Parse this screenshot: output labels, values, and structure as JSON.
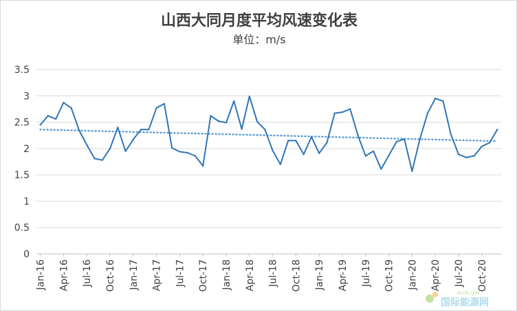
{
  "chart_data": {
    "type": "line",
    "title": "山西大同月度平均风速变化表",
    "subtitle": "单位：m/s",
    "ylim": [
      0,
      3.5
    ],
    "yticks": [
      "0",
      "0.5",
      "1",
      "1.5",
      "2",
      "2.5",
      "3",
      "3.5"
    ],
    "grid": "horizontal",
    "legend": "none",
    "x_tick_labels": [
      "Jan-16",
      "Apr-16",
      "Jul-16",
      "Oct-16",
      "Jan-17",
      "Apr-17",
      "Jul-17",
      "Oct-17",
      "Jan-18",
      "Apr-18",
      "Jul-18",
      "Oct-18",
      "Jan-19",
      "Apr-19",
      "Jul-19",
      "Oct-19",
      "Jan-20",
      "Apr-20",
      "Jul-20",
      "Oct-20"
    ],
    "x_tick_every": 3,
    "series": [
      {
        "style": "solid",
        "color": "#2e75b6",
        "values": [
          2.45,
          2.62,
          2.56,
          2.87,
          2.77,
          2.35,
          2.07,
          1.81,
          1.78,
          2.0,
          2.4,
          1.95,
          2.17,
          2.36,
          2.36,
          2.77,
          2.85,
          2.01,
          1.94,
          1.92,
          1.86,
          1.67,
          2.62,
          2.52,
          2.49,
          2.9,
          2.37,
          2.99,
          2.51,
          2.36,
          1.96,
          1.7,
          2.15,
          2.15,
          1.89,
          2.22,
          1.91,
          2.11,
          2.67,
          2.69,
          2.75,
          2.25,
          1.86,
          1.95,
          1.61,
          1.87,
          2.13,
          2.18,
          1.57,
          2.18,
          2.67,
          2.95,
          2.9,
          2.27,
          1.89,
          1.83,
          1.86,
          2.04,
          2.11,
          2.36
        ]
      },
      {
        "style": "dotted",
        "color": "#5b9bd5",
        "trend_start": 2.36,
        "trend_end": 2.14
      }
    ]
  },
  "watermark": {
    "brand": "国际能源网",
    "site": "IN-EN.COM",
    "color": "#6fc0dc"
  }
}
